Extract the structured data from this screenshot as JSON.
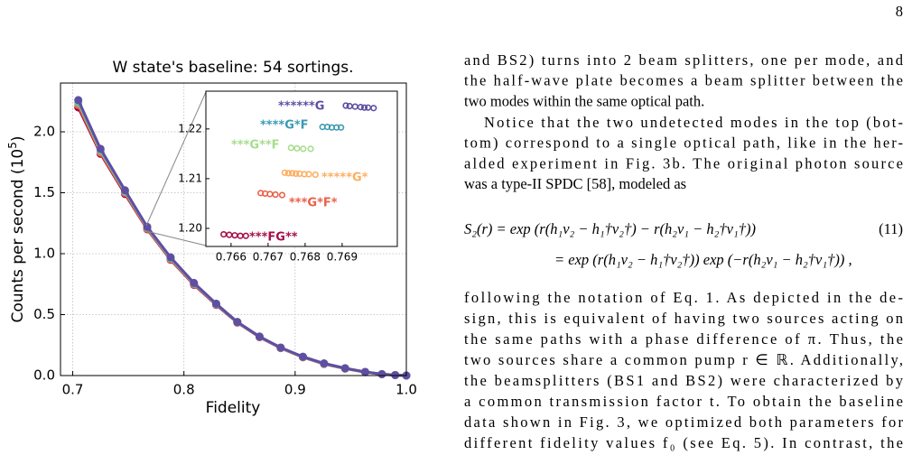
{
  "page_number": "8",
  "chart_data": {
    "type": "line",
    "title": "W state's baseline: 54 sortings.",
    "x_label": "Fidelity",
    "y_label": {
      "text": "Counts per second (10",
      "sup": "5",
      "end": ")"
    },
    "xlim": [
      0.689,
      1.0
    ],
    "ylim": [
      0,
      2.4
    ],
    "xticks": [
      0.7,
      0.8,
      0.9,
      {
        "value": 1.0,
        "label": "1.0"
      }
    ],
    "yticks": [
      {
        "value": 0,
        "label": "0.0"
      },
      0.5,
      {
        "value": 1.0,
        "label": "1.0"
      },
      1.5,
      {
        "value": 2.0,
        "label": "2.0"
      }
    ],
    "grid": true,
    "x": [
      0.705,
      0.725,
      0.747,
      0.767,
      0.788,
      0.809,
      0.829,
      0.848,
      0.868,
      0.887,
      0.907,
      0.926,
      0.945,
      0.963,
      0.978,
      0.99,
      1.0
    ],
    "series": [
      {
        "color": "#9e0142",
        "values": [
          2.2,
          1.82,
          1.49,
          1.2,
          0.95,
          0.745,
          0.58,
          0.435,
          0.315,
          0.225,
          0.15,
          0.095,
          0.057,
          0.028,
          0.011,
          0.004,
          0
        ]
      },
      {
        "color": "#f46d43",
        "values": [
          2.22,
          1.83,
          1.5,
          1.205,
          0.955,
          0.75,
          0.583,
          0.437,
          0.317,
          0.226,
          0.152,
          0.097,
          0.058,
          0.029,
          0.011,
          0.004,
          0
        ]
      },
      {
        "color": "#66c2a5",
        "values": [
          2.24,
          1.845,
          1.51,
          1.213,
          0.962,
          0.755,
          0.586,
          0.439,
          0.319,
          0.228,
          0.153,
          0.098,
          0.059,
          0.03,
          0.012,
          0.004,
          0
        ]
      },
      {
        "color": "#5e4fa2",
        "values": [
          2.26,
          1.86,
          1.52,
          1.22,
          0.97,
          0.76,
          0.59,
          0.44,
          0.32,
          0.23,
          0.155,
          0.1,
          0.06,
          0.03,
          0.012,
          0.004,
          0
        ]
      }
    ],
    "inset": {
      "xlim": [
        0.76532,
        0.77049
      ],
      "ylim": [
        1.19636,
        1.2276
      ],
      "xticks": [
        0.766,
        0.767,
        0.768,
        0.769
      ],
      "yticks": [
        {
          "value": 1.2,
          "label": "1.20"
        },
        1.21,
        1.22
      ],
      "groups": [
        {
          "label": "******G",
          "color": "#5e4fa2",
          "x": [
            0.7691,
            0.7692,
            0.76935,
            0.7695,
            0.7696,
            0.7697,
            0.76985
          ],
          "y": [
            1.2247,
            1.2246,
            1.2245,
            1.2244,
            1.2243,
            1.2243,
            1.2242
          ]
        },
        {
          "label": "****G*F",
          "color": "#3b9ab2",
          "x": [
            0.76847,
            0.7686,
            0.76872,
            0.76885,
            0.76897
          ],
          "y": [
            1.2204,
            1.2204,
            1.2203,
            1.2203,
            1.2203
          ]
        },
        {
          "label": "***G**F",
          "color": "#a6dc8e",
          "x": [
            0.76762,
            0.76778,
            0.76795,
            0.76815
          ],
          "y": [
            1.2162,
            1.2161,
            1.216,
            1.216
          ]
        },
        {
          "label": "*****G*",
          "color": "#fdae61",
          "x": [
            0.76745,
            0.76755,
            0.76765,
            0.76775,
            0.76785,
            0.76798,
            0.7681,
            0.76828
          ],
          "y": [
            1.2112,
            1.2111,
            1.2111,
            1.211,
            1.211,
            1.2109,
            1.2109,
            1.2108
          ]
        },
        {
          "label": "***G*F*",
          "color": "#e8604a",
          "x": [
            0.7668,
            0.76692,
            0.76705,
            0.7672,
            0.76738
          ],
          "y": [
            1.2071,
            1.207,
            1.2069,
            1.2068,
            1.2067
          ]
        },
        {
          "label": "***FG**",
          "color": "#a50f4a",
          "x": [
            0.7658,
            0.76595,
            0.7661,
            0.76625,
            0.7664
          ],
          "y": [
            1.1988,
            1.1987,
            1.1986,
            1.1985,
            1.1985
          ]
        }
      ]
    }
  },
  "text": {
    "para1": [
      "and BS2) turns into 2 beam splitters, one per mode, and",
      "the half-wave plate becomes a beam splitter between the",
      "two modes within the same optical path."
    ],
    "para2": [
      "Notice that the two undetected modes in the top (bot-",
      "tom) correspond to a single optical path, like in the her-",
      "alded experiment in Fig. 3b. The original photon source",
      "was a type-II SPDC [58], modeled as"
    ],
    "equation": {
      "line1": "S₂(r) = exp (r(h₁v₂ − h₁†v₂†) − r(h₂v₁ − h₂†v₁†))",
      "number": "(11)",
      "line2": "= exp (r(h₁v₂ − h₁†v₂†)) exp (−r(h₂v₁ − h₂†v₁†)) ,"
    },
    "para3": [
      "following the notation of Eq. 1. As depicted in the de-",
      "sign, this is equivalent of having two sources acting on",
      "the same paths with a phase difference of π. Thus, the",
      "two sources share a common pump r ∈ ℝ. Additionally,",
      "the beamsplitters (BS1 and BS2) were characterized by",
      "a common transmission factor t. To obtain the baseline",
      "data shown in Fig. 3, we optimized both parameters for",
      "different fidelity values f₀ (see Eq. 5). In contrast, the"
    ]
  }
}
